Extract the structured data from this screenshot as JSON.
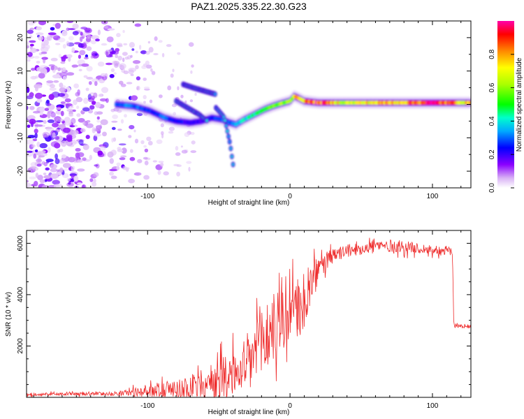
{
  "title": "PAZ1.2025.335.22.30.G23",
  "chart_data": [
    {
      "type": "heatmap",
      "xlabel": "Height of straight line (km)",
      "ylabel": "Frequency (Hz)",
      "xlim": [
        -185,
        127
      ],
      "ylim": [
        -25,
        25
      ],
      "xticks": [
        -100,
        0,
        100
      ],
      "xtick_labels": [
        "-100",
        "0",
        "100"
      ],
      "yticks": [
        -20,
        -10,
        0,
        10,
        20
      ],
      "ytick_labels": [
        "-20",
        "-10",
        "0",
        "10",
        "20"
      ],
      "colorbar": {
        "label": "Normalized spectral amplitude",
        "range": [
          0,
          1
        ],
        "ticks": [
          0.0,
          0.2,
          0.4,
          0.6,
          0.8
        ],
        "tick_labels": [
          "0.0",
          "0.2",
          "0.4",
          "0.6",
          "0.8"
        ]
      },
      "ridge": {
        "x": [
          -122,
          -110,
          -98,
          -88,
          -80,
          -70,
          -62,
          -55,
          -48,
          -42,
          -38,
          -32,
          -25,
          -18,
          -12,
          -6,
          0,
          3,
          10,
          20,
          40,
          60,
          80,
          100,
          127
        ],
        "freq_hz": [
          0,
          -0.5,
          -2,
          -4,
          -5,
          -5.5,
          -5,
          -4,
          -4.5,
          -5.5,
          -6,
          -4.5,
          -3,
          -1.5,
          -0.5,
          0.3,
          1,
          2.5,
          1,
          0.5,
          0.5,
          0.5,
          0.5,
          0.5,
          0.5
        ],
        "amplitude": [
          0.3,
          0.3,
          0.25,
          0.3,
          0.25,
          0.2,
          0.2,
          0.25,
          0.3,
          0.3,
          0.35,
          0.4,
          0.45,
          0.5,
          0.55,
          0.6,
          0.65,
          0.7,
          0.8,
          0.9,
          0.65,
          0.75,
          0.8,
          0.95,
          0.7
        ]
      },
      "branches": [
        {
          "x": [
            -75,
            -68,
            -60,
            -52
          ],
          "freq_hz": [
            6,
            5,
            4,
            3
          ]
        },
        {
          "x": [
            -80,
            -72,
            -64,
            -58
          ],
          "freq_hz": [
            1,
            -1,
            -3,
            -5
          ]
        },
        {
          "x": [
            -52,
            -46,
            -42,
            -40
          ],
          "freq_hz": [
            -1,
            -4,
            -12,
            -18
          ]
        }
      ]
    },
    {
      "type": "line",
      "xlabel": "Height of straight line (km)",
      "ylabel": "SNR (10 * v/v)",
      "xlim": [
        -185,
        127
      ],
      "ylim": [
        0,
        6500
      ],
      "xticks": [
        -100,
        0,
        100
      ],
      "xtick_labels": [
        "-100",
        "0",
        "100"
      ],
      "yticks": [
        2000,
        4000,
        6000
      ],
      "ytick_labels": [
        "2000",
        "4000",
        "6000"
      ],
      "series": [
        {
          "name": "SNR",
          "color": "#ee2a2a",
          "envelope_x": [
            -185,
            -150,
            -120,
            -100,
            -80,
            -60,
            -50,
            -42,
            -36,
            -30,
            -25,
            -20,
            -15,
            -10,
            -5,
            0,
            5,
            10,
            15,
            20,
            30,
            40,
            50,
            60,
            70,
            80,
            90,
            100,
            110,
            114,
            115,
            120,
            127
          ],
          "envelope_base": [
            120,
            130,
            150,
            250,
            350,
            500,
            700,
            900,
            900,
            1200,
            1700,
            2100,
            2500,
            2800,
            3000,
            3200,
            3400,
            3700,
            4300,
            5000,
            5500,
            5700,
            5800,
            5900,
            5900,
            5850,
            5800,
            5750,
            5700,
            5700,
            2800,
            2780,
            2750
          ],
          "noise_amp": [
            60,
            60,
            80,
            250,
            400,
            600,
            900,
            1200,
            500,
            1300,
            1500,
            1600,
            1500,
            1400,
            1300,
            1200,
            1200,
            1100,
            900,
            500,
            300,
            250,
            250,
            250,
            250,
            250,
            200,
            200,
            200,
            200,
            80,
            80,
            80
          ]
        }
      ]
    }
  ]
}
